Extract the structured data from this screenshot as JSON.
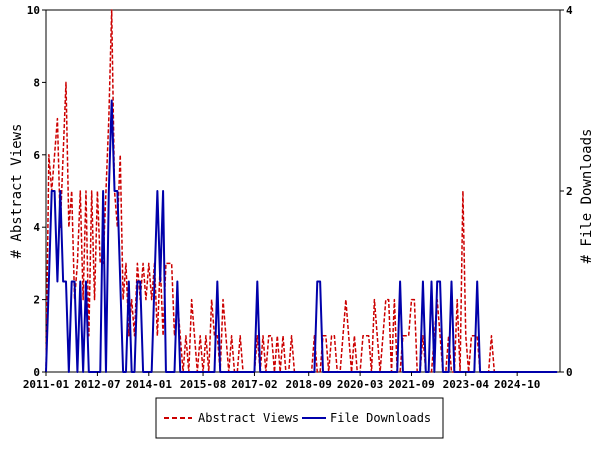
{
  "chart_data": {
    "type": "line",
    "ylabel_left": "# Abstract Views",
    "ylabel_right": "# File Downloads",
    "x_ticks": [
      "2011-01",
      "2012-07",
      "2014-01",
      "2015-08",
      "2017-02",
      "2018-09",
      "2020-03",
      "2021-09",
      "2023-04",
      "2024-10"
    ],
    "x_tick_months": [
      0,
      18,
      36,
      55,
      73,
      92,
      110,
      128,
      147,
      165
    ],
    "x_range_months": [
      0,
      180
    ],
    "y_left_range": [
      0,
      10
    ],
    "y_left_ticks": [
      "0",
      "2",
      "4",
      "6",
      "8",
      "10"
    ],
    "y_right_range": [
      0,
      4
    ],
    "y_right_ticks": [
      "0",
      "2",
      "4"
    ],
    "series": [
      {
        "name": "Abstract Views",
        "axis": "left",
        "color": "#cc0000",
        "style": "dashed",
        "values": [
          0,
          6,
          5,
          6,
          7,
          4,
          6,
          8,
          4,
          5,
          2,
          3,
          5,
          2,
          5,
          1,
          5,
          2,
          5,
          3,
          3,
          5,
          7,
          10,
          5,
          4,
          6,
          2,
          3,
          1,
          2,
          1,
          3,
          2,
          3,
          2,
          3,
          2,
          3,
          1,
          3,
          1,
          3,
          3,
          3,
          1,
          2,
          1,
          0,
          1,
          0,
          2,
          1,
          0,
          1,
          0,
          1,
          0,
          2,
          1,
          1,
          0,
          2,
          1,
          0,
          1,
          0,
          0,
          1,
          0,
          0,
          0,
          0,
          0,
          1,
          0,
          1,
          0,
          1,
          1,
          0,
          1,
          0,
          1,
          0,
          0,
          1,
          0,
          0,
          0,
          0,
          0,
          0,
          0,
          1,
          0,
          0,
          1,
          1,
          0,
          1,
          1,
          0,
          0,
          1,
          2,
          1,
          0,
          1,
          0,
          0,
          1,
          1,
          1,
          0,
          2,
          1,
          0,
          1,
          2,
          2,
          0,
          2,
          0,
          0,
          1,
          1,
          1,
          2,
          2,
          0,
          0,
          1,
          0,
          0,
          0,
          1,
          2,
          1,
          0,
          0,
          1,
          0,
          0,
          2,
          0,
          5,
          1,
          0,
          1,
          1,
          1,
          0,
          0,
          0,
          0,
          1,
          0,
          0,
          0,
          0,
          0,
          0,
          0,
          0,
          0,
          0,
          0,
          0,
          0,
          0,
          0,
          0,
          0,
          0,
          0,
          0,
          0,
          0,
          0
        ]
      },
      {
        "name": "File Downloads",
        "axis": "right",
        "color": "#0000aa",
        "style": "solid",
        "values": [
          0,
          1,
          2,
          2,
          1,
          2,
          1,
          1,
          0,
          1,
          1,
          0,
          1,
          0,
          1,
          0,
          0,
          0,
          0,
          0,
          2,
          0,
          2,
          3,
          2,
          2,
          1,
          0,
          0,
          1,
          0,
          0,
          1,
          1,
          0,
          0,
          0,
          0,
          1,
          2,
          1,
          2,
          0,
          0,
          0,
          0,
          1,
          0,
          0,
          0,
          0,
          0,
          0,
          0,
          0,
          0,
          0,
          0,
          0,
          0,
          1,
          0,
          0,
          0,
          0,
          0,
          0,
          0,
          0,
          0,
          0,
          0,
          0,
          0,
          1,
          0,
          0,
          0,
          0,
          0,
          0,
          0,
          0,
          0,
          0,
          0,
          0,
          0,
          0,
          0,
          0,
          0,
          0,
          0,
          0,
          1,
          1,
          0,
          0,
          0,
          0,
          0,
          0,
          0,
          0,
          0,
          0,
          0,
          0,
          0,
          0,
          0,
          0,
          0,
          0,
          0,
          0,
          0,
          0,
          0,
          0,
          0,
          0,
          0,
          1,
          0,
          0,
          0,
          0,
          0,
          0,
          0,
          1,
          0,
          0,
          1,
          0,
          1,
          1,
          0,
          0,
          0,
          1,
          0,
          0,
          0,
          0,
          0,
          0,
          0,
          0,
          1,
          0,
          0,
          0,
          0,
          0,
          0,
          0,
          0,
          0,
          0,
          0,
          0,
          0,
          0,
          0,
          0,
          0,
          0,
          0,
          0,
          0,
          0,
          0,
          0,
          0,
          0,
          0,
          0
        ]
      }
    ],
    "legend": {
      "position": "bottom"
    },
    "grid": false
  }
}
